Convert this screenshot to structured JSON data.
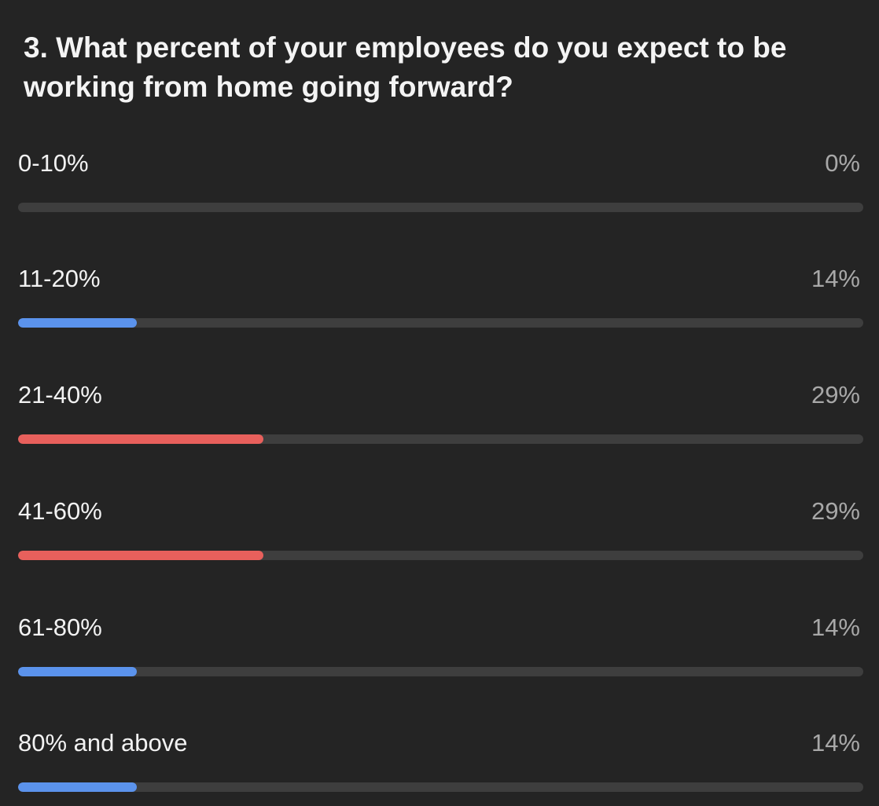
{
  "poll": {
    "question": "3. What percent of your employees do you expect to be working from home going forward?",
    "colors": {
      "background": "#242424",
      "track": "#3e3e3e",
      "blue": "#5b93ec",
      "red": "#e8605c"
    },
    "options": [
      {
        "label": "0-10%",
        "percent_text": "0%",
        "value": 0,
        "color": "blue"
      },
      {
        "label": "11-20%",
        "percent_text": "14%",
        "value": 14,
        "color": "blue"
      },
      {
        "label": "21-40%",
        "percent_text": "29%",
        "value": 29,
        "color": "red"
      },
      {
        "label": "41-60%",
        "percent_text": "29%",
        "value": 29,
        "color": "red"
      },
      {
        "label": "61-80%",
        "percent_text": "14%",
        "value": 14,
        "color": "blue"
      },
      {
        "label": "80% and above",
        "percent_text": "14%",
        "value": 14,
        "color": "blue"
      }
    ]
  }
}
